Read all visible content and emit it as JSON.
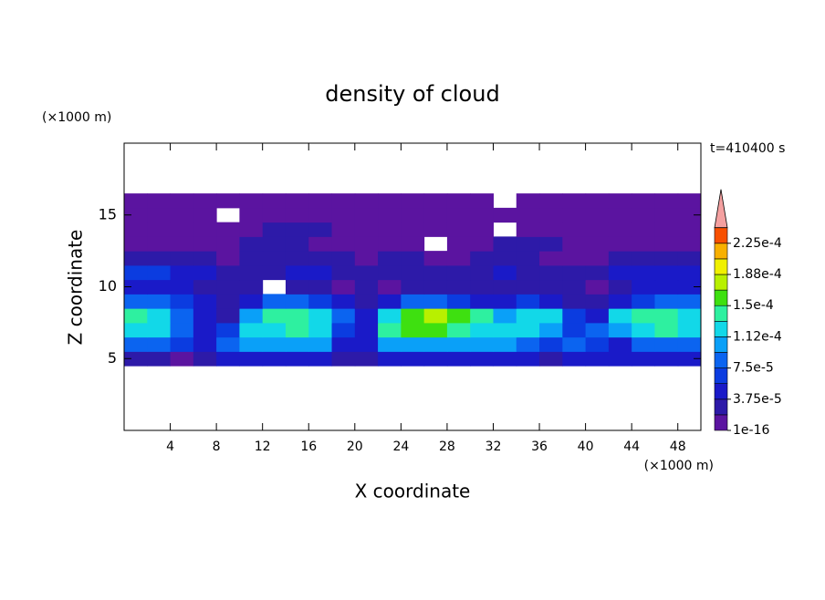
{
  "chart_data": {
    "type": "contour",
    "title": "density of cloud",
    "annotation": "t=410400 s",
    "x_label": "X coordinate",
    "y_label": "Z coordinate",
    "x_unit": "(×1000 m)",
    "y_unit": "(×1000 m)",
    "xlim": [
      0,
      50
    ],
    "xticks": [
      4,
      8,
      12,
      16,
      20,
      24,
      28,
      32,
      36,
      40,
      44,
      48
    ],
    "ylim": [
      0,
      20
    ],
    "yticks": [
      5,
      10,
      15
    ],
    "x": [
      1,
      3,
      5,
      7,
      9,
      11,
      13,
      15,
      17,
      19,
      21,
      23,
      25,
      27,
      29,
      31,
      33,
      35,
      37,
      39,
      41,
      43,
      45,
      47,
      49
    ],
    "y": [
      5,
      6,
      7,
      8,
      9,
      10,
      11,
      12,
      13,
      14,
      15,
      16
    ],
    "z": [
      [
        2e-05,
        2e-05,
        1e-05,
        2e-05,
        4e-05,
        4e-05,
        4e-05,
        4e-05,
        4e-05,
        2e-05,
        2e-05,
        4e-05,
        4e-05,
        4e-05,
        4e-05,
        4e-05,
        4e-05,
        4e-05,
        2e-05,
        4e-05,
        4e-05,
        4e-05,
        4e-05,
        4e-05,
        4e-05
      ],
      [
        8e-05,
        8e-05,
        6e-05,
        4e-05,
        8e-05,
        0.0001,
        0.0001,
        0.0001,
        0.0001,
        4e-05,
        4e-05,
        0.0001,
        0.0001,
        0.0001,
        0.0001,
        0.0001,
        0.0001,
        8e-05,
        6e-05,
        8e-05,
        6e-05,
        4e-05,
        8e-05,
        8e-05,
        8e-05
      ],
      [
        0.00012,
        0.00012,
        8e-05,
        4e-05,
        6e-05,
        0.00012,
        0.00012,
        0.00014,
        0.00012,
        6e-05,
        4e-05,
        0.00014,
        0.000155,
        0.000155,
        0.00014,
        0.00012,
        0.00012,
        0.00012,
        0.0001,
        6e-05,
        8e-05,
        0.0001,
        0.00012,
        0.00014,
        0.00012
      ],
      [
        0.00014,
        0.00012,
        8e-05,
        4e-05,
        2e-05,
        0.0001,
        0.00014,
        0.00014,
        0.00012,
        8e-05,
        4e-05,
        0.00012,
        0.000155,
        0.00017,
        0.000155,
        0.00014,
        0.0001,
        0.00012,
        0.00012,
        6e-05,
        4e-05,
        0.00012,
        0.00014,
        0.00014,
        0.00012
      ],
      [
        8e-05,
        8e-05,
        6e-05,
        4e-05,
        2e-05,
        4e-05,
        8e-05,
        8e-05,
        6e-05,
        4e-05,
        2e-05,
        4e-05,
        8e-05,
        8e-05,
        6e-05,
        4e-05,
        4e-05,
        6e-05,
        4e-05,
        2e-05,
        2e-05,
        4e-05,
        6e-05,
        8e-05,
        8e-05
      ],
      [
        4e-05,
        4e-05,
        4e-05,
        2e-05,
        2e-05,
        2e-05,
        null,
        2e-05,
        2e-05,
        1e-05,
        2e-05,
        1e-05,
        2e-05,
        2e-05,
        2e-05,
        2e-05,
        2e-05,
        2e-05,
        2e-05,
        2e-05,
        1e-05,
        2e-05,
        4e-05,
        4e-05,
        4e-05
      ],
      [
        6e-05,
        6e-05,
        4e-05,
        4e-05,
        2e-05,
        2e-05,
        2e-05,
        4e-05,
        4e-05,
        2e-05,
        2e-05,
        2e-05,
        2e-05,
        2e-05,
        2e-05,
        2e-05,
        4e-05,
        2e-05,
        2e-05,
        2e-05,
        2e-05,
        4e-05,
        4e-05,
        4e-05,
        4e-05
      ],
      [
        2e-05,
        2e-05,
        2e-05,
        2e-05,
        1e-05,
        2e-05,
        2e-05,
        2e-05,
        2e-05,
        2e-05,
        1e-05,
        2e-05,
        2e-05,
        1e-05,
        1e-05,
        2e-05,
        2e-05,
        2e-05,
        1e-05,
        1e-05,
        1e-05,
        2e-05,
        2e-05,
        2e-05,
        2e-05
      ],
      [
        1e-05,
        1e-05,
        1e-05,
        1e-05,
        1e-05,
        2e-05,
        2e-05,
        2e-05,
        1e-05,
        1e-05,
        1e-05,
        1e-05,
        1e-05,
        null,
        1e-05,
        1e-05,
        2e-05,
        2e-05,
        2e-05,
        1e-05,
        1e-05,
        1e-05,
        1e-05,
        1e-05,
        1e-05
      ],
      [
        1e-05,
        1e-05,
        1e-05,
        1e-05,
        1e-05,
        1e-05,
        2e-05,
        2e-05,
        2e-05,
        1e-05,
        1e-05,
        1e-05,
        1e-05,
        1e-05,
        1e-05,
        1e-05,
        null,
        1e-05,
        1e-05,
        1e-05,
        1e-05,
        1e-05,
        1e-05,
        1e-05,
        1e-05
      ],
      [
        1e-05,
        1e-05,
        1e-05,
        1e-05,
        null,
        1e-05,
        1e-05,
        1e-05,
        1e-05,
        1e-05,
        1e-05,
        1e-05,
        1e-05,
        1e-05,
        1e-05,
        1e-05,
        1e-05,
        1e-05,
        1e-05,
        1e-05,
        1e-05,
        1e-05,
        1e-05,
        1e-05,
        1e-05
      ],
      [
        1e-05,
        1e-05,
        1e-05,
        1e-05,
        1e-05,
        1e-05,
        1e-05,
        1e-05,
        1e-05,
        1e-05,
        1e-05,
        1e-05,
        1e-05,
        1e-05,
        1e-05,
        1e-05,
        null,
        1e-05,
        1e-05,
        1e-05,
        1e-05,
        1e-05,
        1e-05,
        1e-05,
        1e-05
      ]
    ],
    "levels": [
      1e-16,
      1.875e-05,
      3.75e-05,
      5.625e-05,
      7.5e-05,
      9.375e-05,
      0.0001125,
      0.00013125,
      0.00015,
      0.00016875,
      0.0001875,
      0.00020625,
      0.000225,
      0.00024375
    ],
    "colors": [
      "#5b14a0",
      "#2d1aa8",
      "#1a1ac8",
      "#0b3ce0",
      "#0b64f0",
      "#0aa0f8",
      "#12d8e8",
      "#2ef0a0",
      "#3ee010",
      "#b8f000",
      "#f0f000",
      "#f8b000",
      "#f85000"
    ],
    "over_color": "#f4a0a0",
    "colorbar_ticks": [
      {
        "value": 1e-16,
        "label": "1e-16"
      },
      {
        "value": 3.75e-05,
        "label": "3.75e-5"
      },
      {
        "value": 7.5e-05,
        "label": "7.5e-5"
      },
      {
        "value": 0.0001125,
        "label": "1.12e-4"
      },
      {
        "value": 0.00015,
        "label": "1.5e-4"
      },
      {
        "value": 0.0001875,
        "label": "1.88e-4"
      },
      {
        "value": 0.000225,
        "label": "2.25e-4"
      }
    ]
  }
}
